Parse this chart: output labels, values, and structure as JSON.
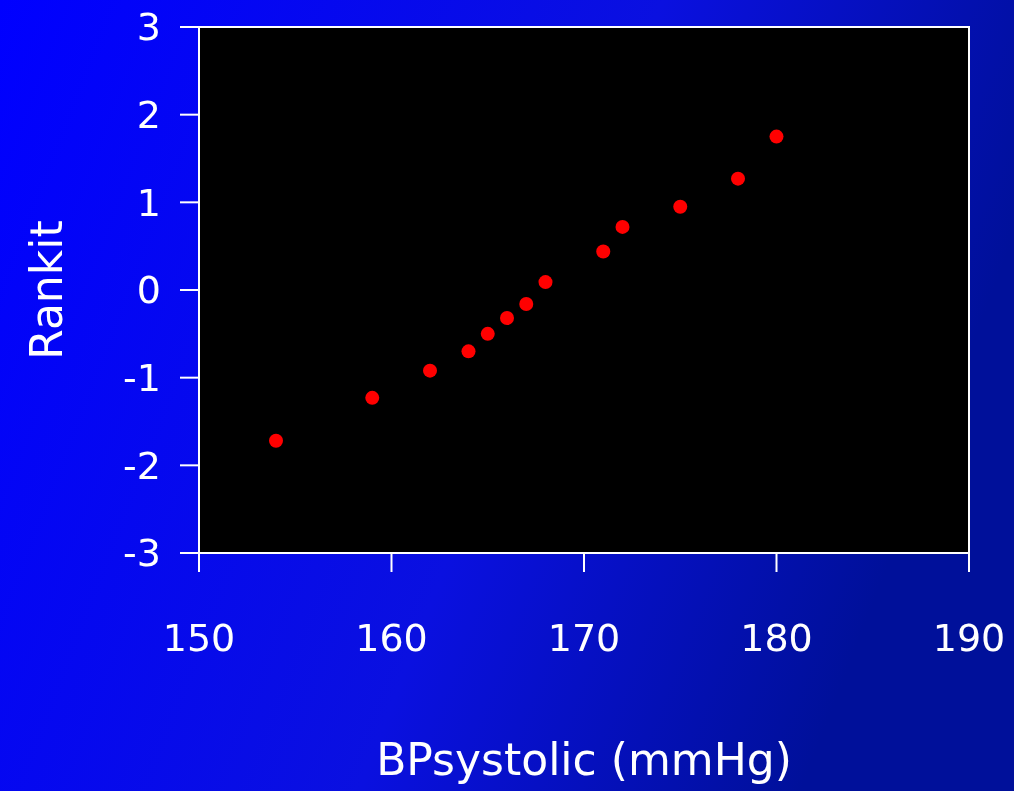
{
  "chart_data": {
    "type": "scatter",
    "xlabel": "BPsystolic (mmHg)",
    "ylabel": "Rankit",
    "x": [
      154,
      159,
      162,
      164,
      165,
      166,
      167,
      168,
      171,
      172,
      175,
      178,
      180
    ],
    "values": [
      -1.72,
      -1.23,
      -0.92,
      -0.7,
      -0.5,
      -0.32,
      -0.16,
      0.09,
      0.44,
      0.72,
      0.95,
      1.27,
      1.75
    ],
    "color": "#ff0000",
    "marker": "circle",
    "xlim": [
      150,
      190
    ],
    "xticks": [
      150,
      160,
      170,
      180,
      190
    ],
    "ylim": [
      -3,
      3
    ],
    "yticks": [
      -3,
      -2,
      -1,
      0,
      1,
      2,
      3
    ]
  }
}
